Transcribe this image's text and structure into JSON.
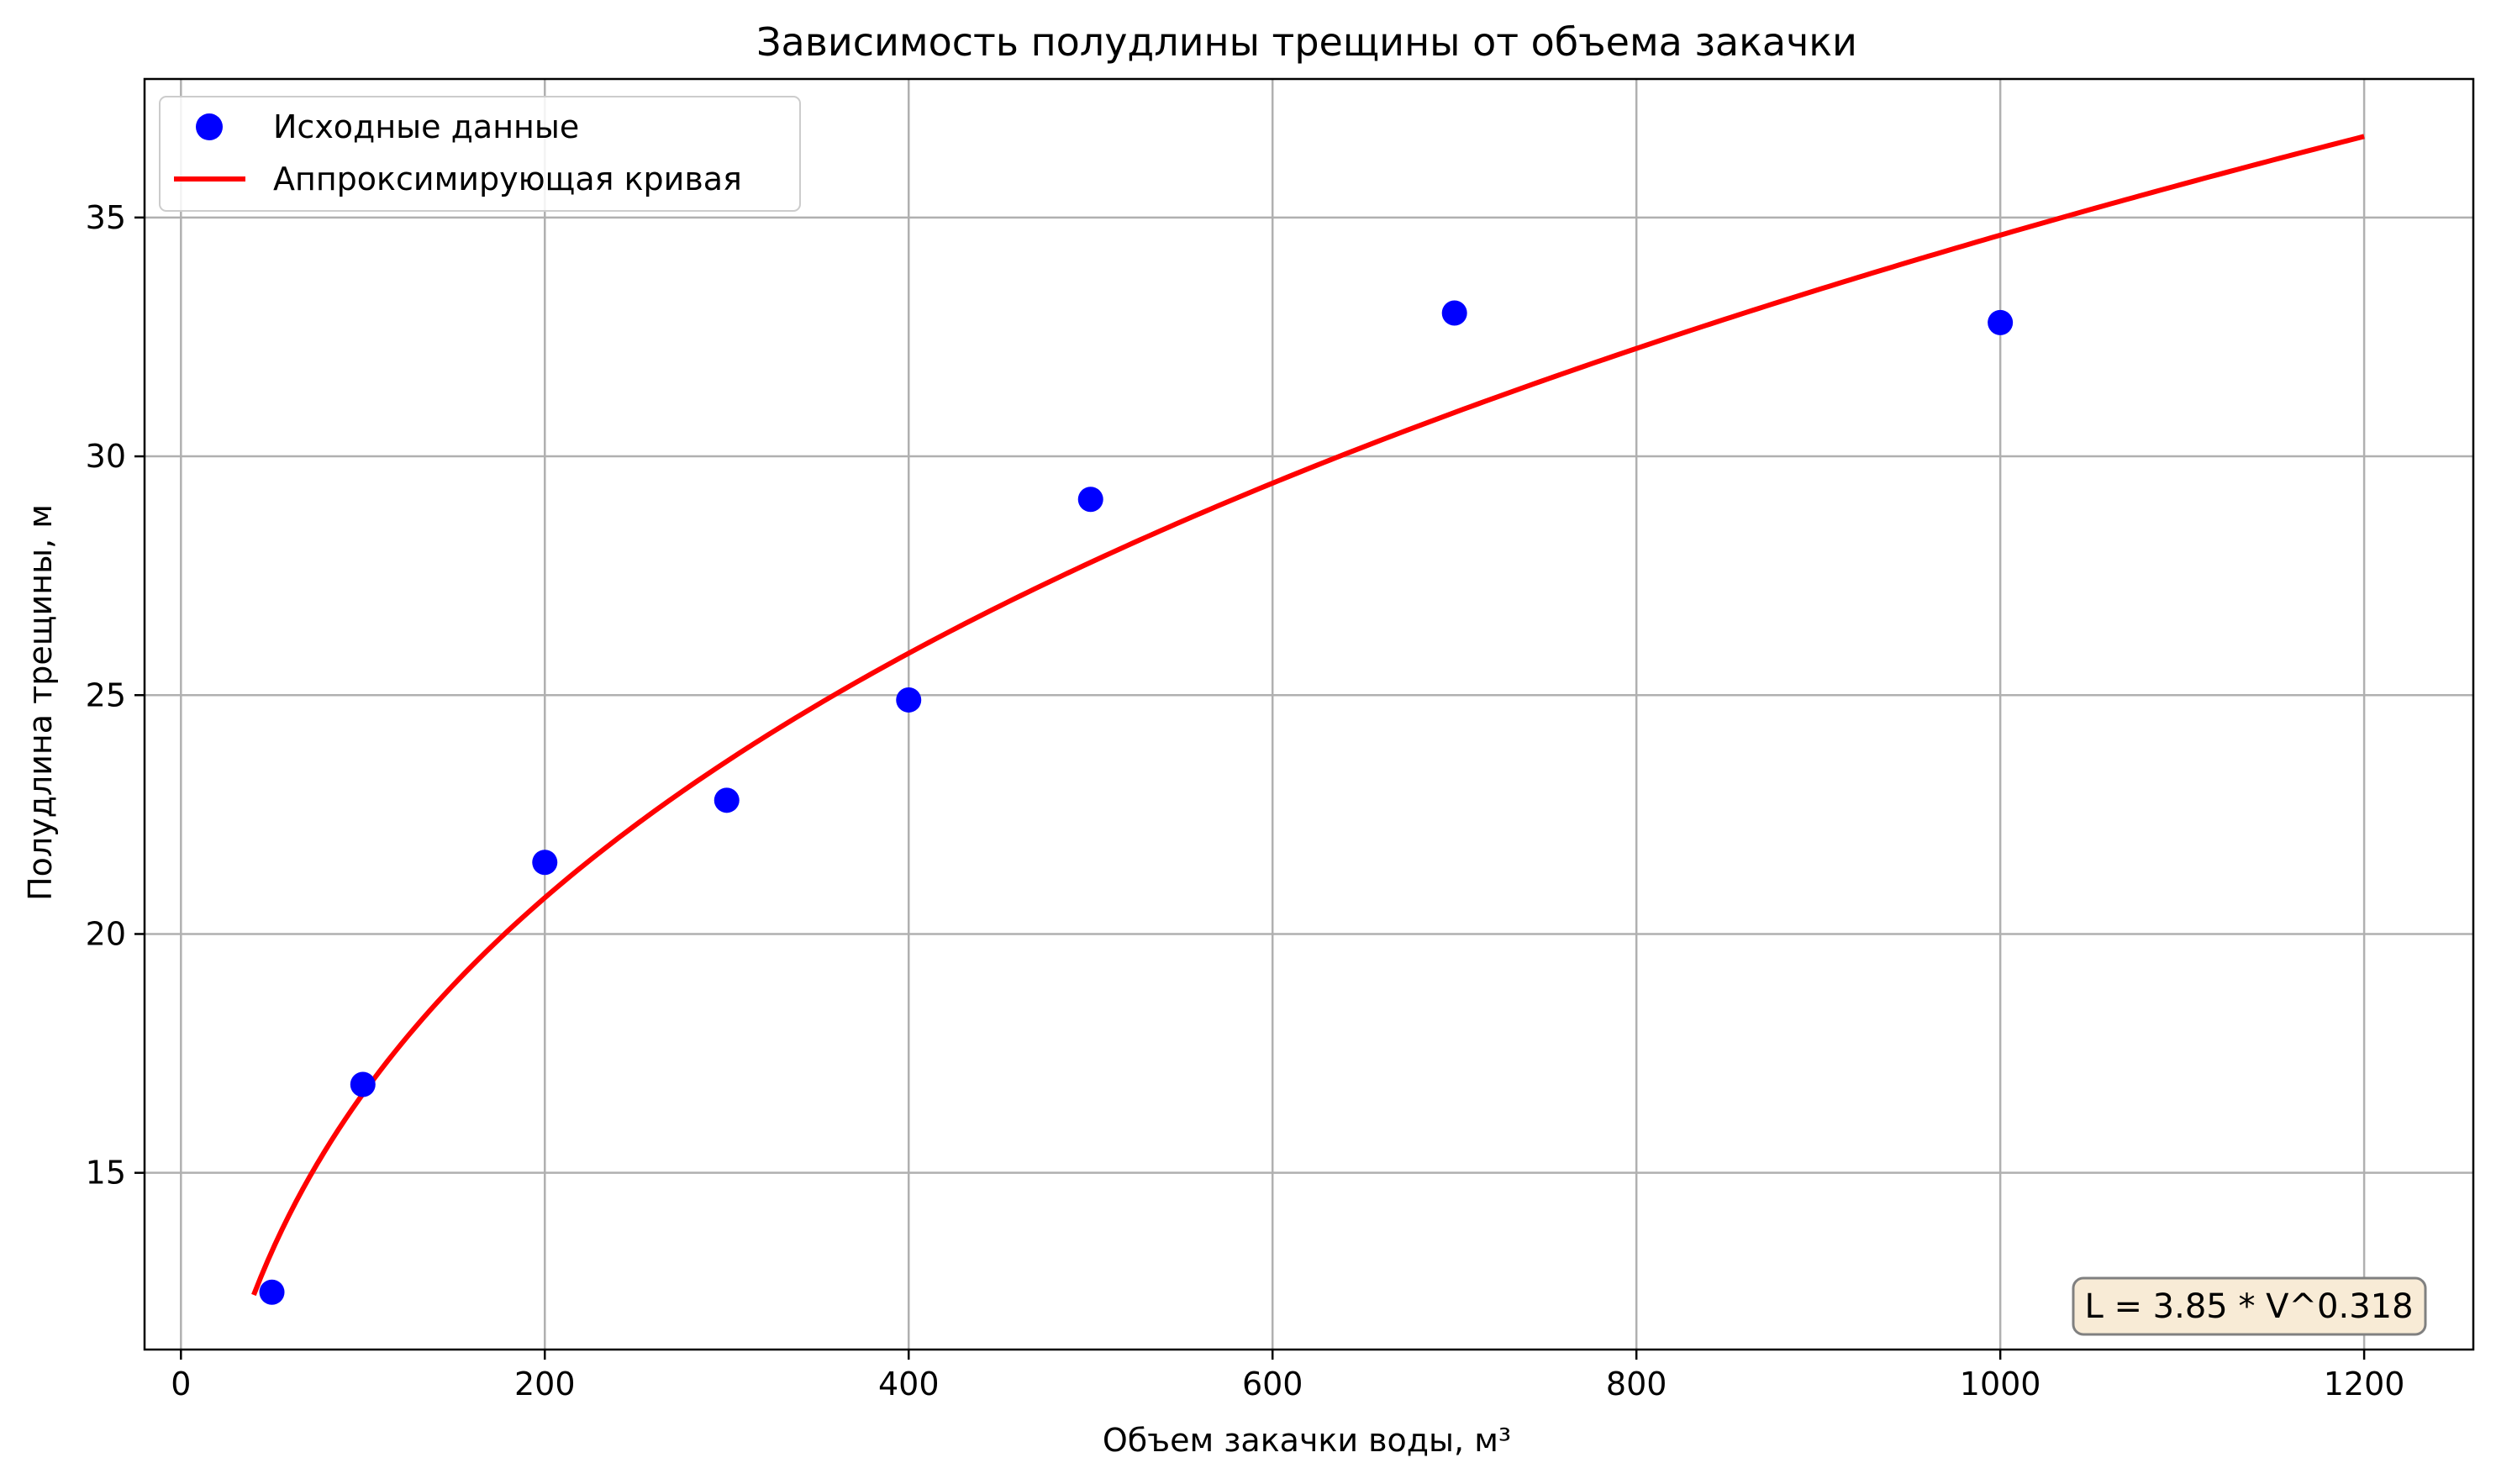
{
  "chart_data": {
    "type": "scatter",
    "title": "Зависимость полудлины трещины от объема закачки",
    "xlabel": "Объем закачки воды, м³",
    "ylabel": "Полудлина трещины, м",
    "xlim": [
      -20,
      1260
    ],
    "ylim": [
      11.3,
      37.9
    ],
    "xticks": [
      0,
      200,
      400,
      600,
      800,
      1000,
      1200
    ],
    "yticks": [
      15,
      20,
      25,
      30,
      35
    ],
    "grid": true,
    "legend_position": "top-left",
    "series": [
      {
        "name": "Исходные данные",
        "kind": "scatter",
        "color": "#0000ff",
        "points": [
          {
            "x": 50,
            "y": 12.5
          },
          {
            "x": 100,
            "y": 16.85
          },
          {
            "x": 200,
            "y": 21.5
          },
          {
            "x": 300,
            "y": 22.8
          },
          {
            "x": 400,
            "y": 24.9
          },
          {
            "x": 500,
            "y": 29.1
          },
          {
            "x": 700,
            "y": 33.0
          },
          {
            "x": 1000,
            "y": 32.8
          }
        ]
      },
      {
        "name": "Аппроксимирующая кривая",
        "kind": "line",
        "color": "#ff0000",
        "model": {
          "a": 3.85,
          "b": 0.318
        },
        "x_range": [
          40,
          1200
        ]
      }
    ],
    "annotation": {
      "text": "L = 3.85 * V^0.318",
      "position": "bottom-right",
      "background": "#f8ebd6"
    },
    "colors": {
      "grid": "#b0b0b0",
      "axes": "#000000"
    }
  }
}
